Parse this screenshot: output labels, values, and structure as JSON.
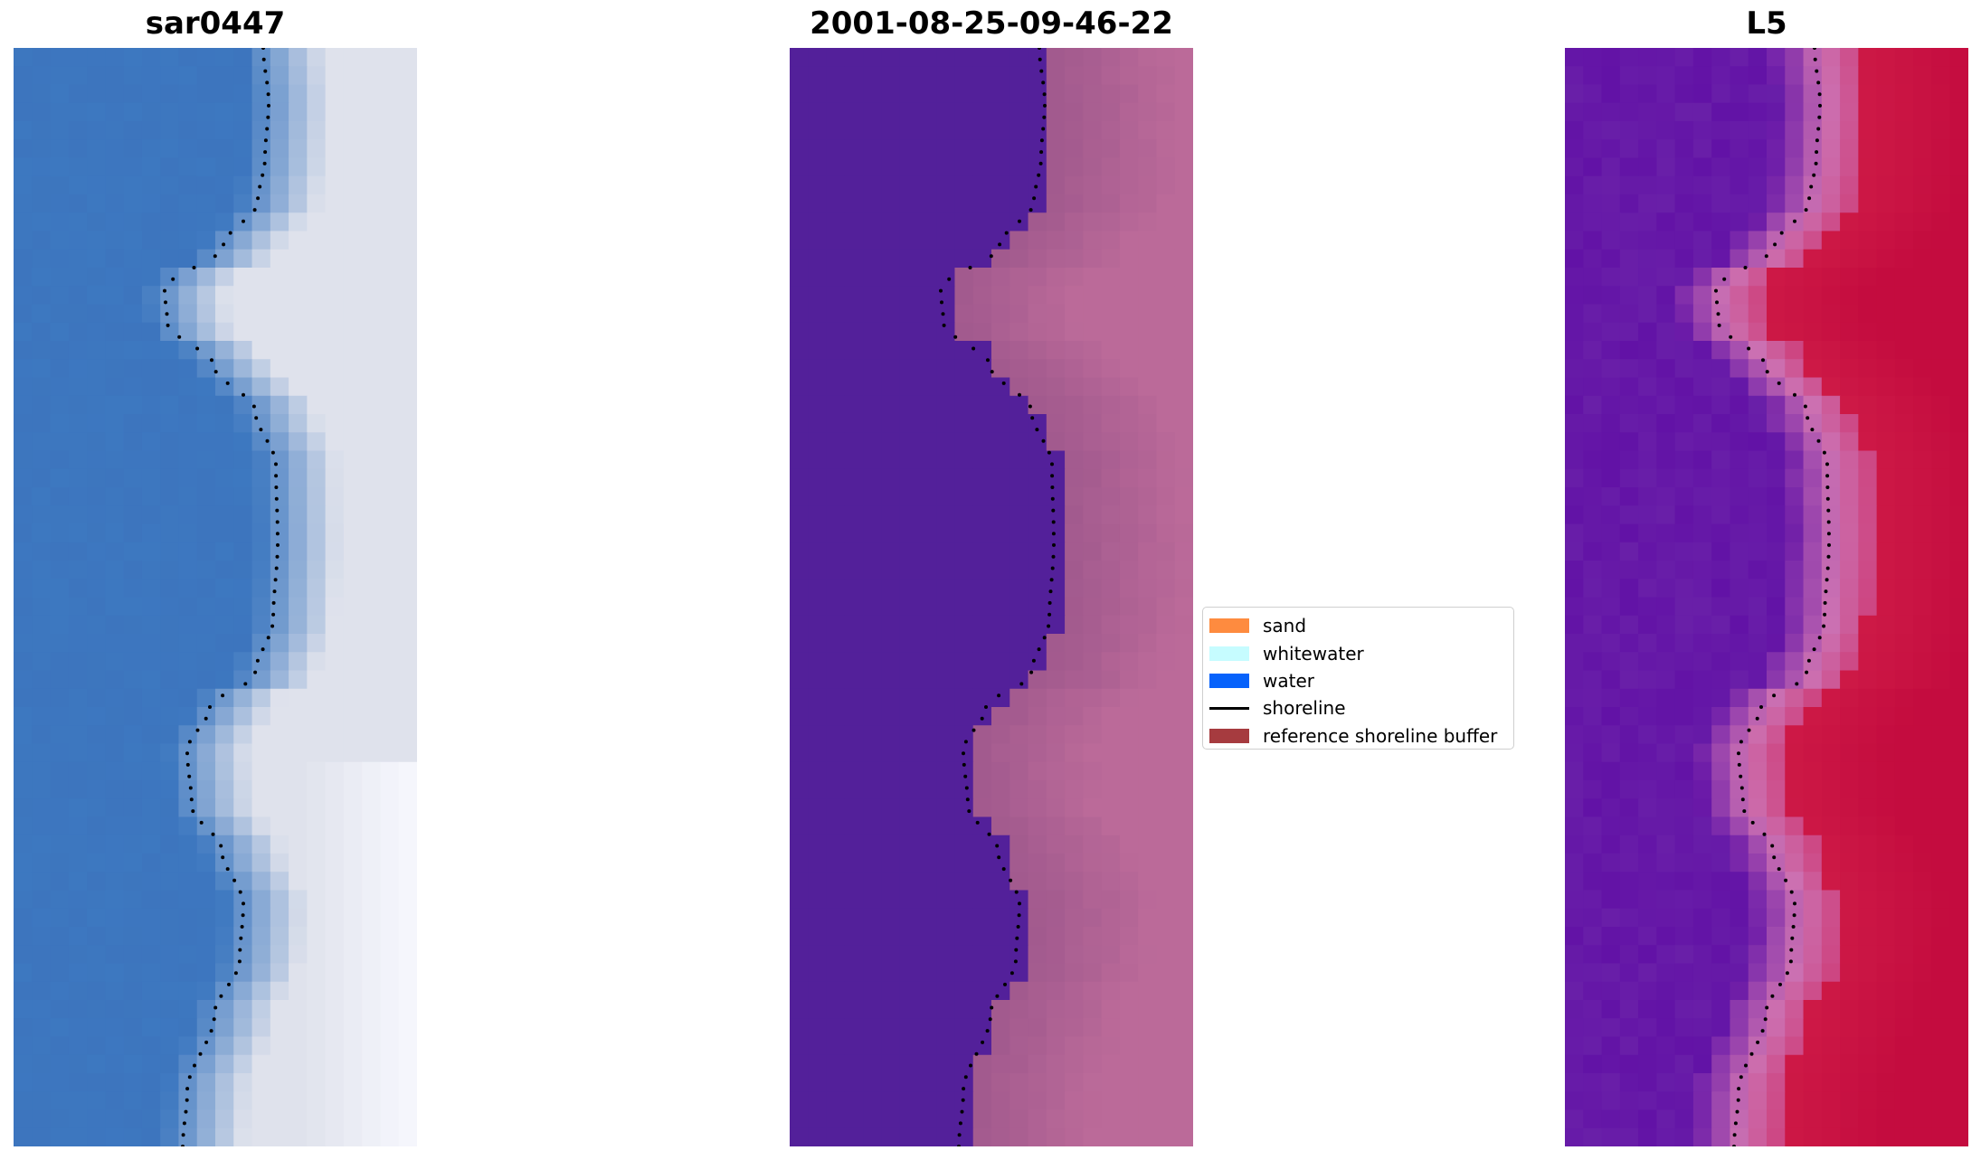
{
  "panels": [
    {
      "title": "sar0447",
      "colormap": "rgb"
    },
    {
      "title": "2001-08-25-09-46-22",
      "colormap": "classified"
    },
    {
      "title": "L5",
      "colormap": "index"
    }
  ],
  "legend": {
    "items": [
      {
        "label": "sand",
        "color": "#fe8b3f",
        "kind": "patch"
      },
      {
        "label": "whitewater",
        "color": "#c6fcff",
        "kind": "patch"
      },
      {
        "label": "water",
        "color": "#0662fb",
        "kind": "patch"
      },
      {
        "label": "shoreline",
        "color": "#000000",
        "kind": "line"
      },
      {
        "label": "reference shoreline buffer",
        "color": "#a63b3f",
        "kind": "patch"
      }
    ]
  },
  "colors": {
    "water_rgb": "#3d78c0",
    "land_rgb": "#dfe2ec",
    "water_class": "#53209a",
    "buffer_class": "#a25a8e",
    "land_class": "#bb6a99",
    "water_index": "#6212a6",
    "buffer_index": "#cc71b2",
    "land_index": "#c40c3f"
  }
}
